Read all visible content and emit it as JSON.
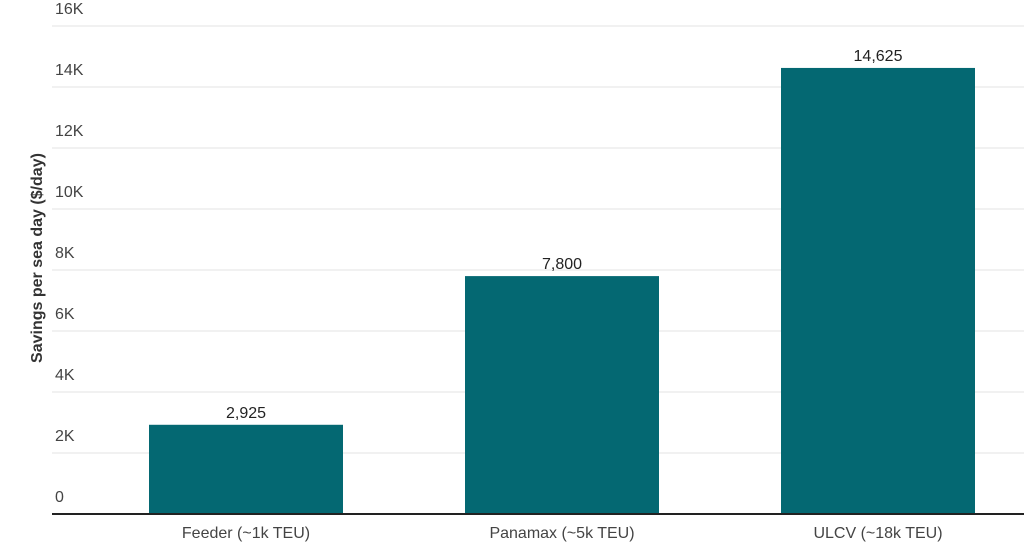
{
  "chart_data": {
    "type": "bar",
    "y_label": "Savings per sea day ($/day)",
    "categories": [
      "Feeder (~1k TEU)",
      "Panamax (~5k TEU)",
      "ULCV (~18k TEU)"
    ],
    "values": [
      2925,
      7800,
      14625
    ],
    "value_labels": [
      "2,925",
      "7,800",
      "14,625"
    ],
    "color": "#046872",
    "ylim": [
      0,
      16000
    ],
    "yticks": [
      0,
      {
        "value": 2000,
        "label": "2K"
      },
      {
        "value": 4000,
        "label": "4K"
      },
      {
        "value": 6000,
        "label": "6K"
      },
      {
        "value": 8000,
        "label": "8K"
      },
      {
        "value": 10000,
        "label": "10K"
      },
      {
        "value": 12000,
        "label": "12K"
      },
      {
        "value": 14000,
        "label": "14K"
      },
      {
        "value": 16000,
        "label": "16K"
      }
    ],
    "grid": true
  }
}
